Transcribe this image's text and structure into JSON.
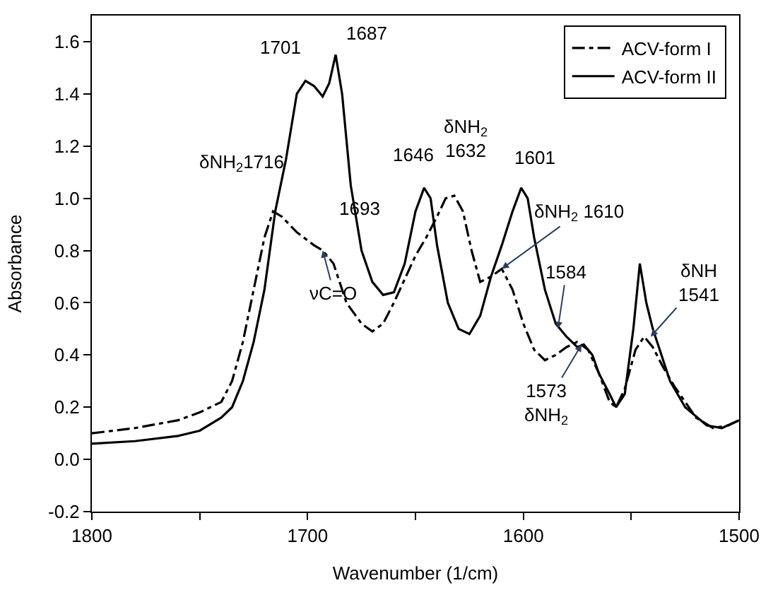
{
  "chart_data": {
    "type": "line",
    "xlabel": "Wavenumber (1/cm)",
    "ylabel": "Absorbance",
    "xlim": [
      1800,
      1500
    ],
    "ylim": [
      -0.2,
      1.7
    ],
    "xticks": [
      1800,
      {
        "value": 1750,
        "label": null
      },
      1700,
      {
        "value": 1650,
        "label": null
      },
      1600,
      {
        "value": 1550,
        "label": null
      },
      1500
    ],
    "yticks": [
      {
        "value": -0.2,
        "label": "-0.2"
      },
      {
        "value": 0,
        "label": "0.0"
      },
      {
        "value": 0.2,
        "label": "0.2"
      },
      {
        "value": 0.4,
        "label": "0.4"
      },
      {
        "value": 0.6,
        "label": "0.6"
      },
      {
        "value": 0.8,
        "label": "0.8"
      },
      {
        "value": 1.0,
        "label": "1.0"
      },
      {
        "value": 1.2,
        "label": "1.2"
      },
      {
        "value": 1.4,
        "label": "1.4"
      },
      {
        "value": 1.6,
        "label": "1.6"
      }
    ],
    "legend": "top right",
    "marker": "none",
    "series": [
      {
        "name": "ACV-form I",
        "color": "#000000",
        "line_style": "dashdot",
        "x": [
          1800,
          1780,
          1760,
          1750,
          1740,
          1735,
          1730,
          1725,
          1720,
          1716,
          1712,
          1705,
          1697,
          1693,
          1688,
          1682,
          1675,
          1670,
          1665,
          1660,
          1650,
          1645,
          1640,
          1636,
          1632,
          1628,
          1624,
          1620,
          1615,
          1610,
          1605,
          1600,
          1595,
          1590,
          1585,
          1580,
          1575,
          1570,
          1565,
          1560,
          1557,
          1553,
          1548,
          1544,
          1540,
          1535,
          1530,
          1520,
          1512,
          1505,
          1500
        ],
        "values": [
          0.1,
          0.12,
          0.15,
          0.18,
          0.22,
          0.3,
          0.45,
          0.65,
          0.85,
          0.95,
          0.93,
          0.87,
          0.82,
          0.8,
          0.75,
          0.6,
          0.52,
          0.49,
          0.52,
          0.6,
          0.78,
          0.85,
          0.93,
          1.0,
          1.01,
          0.95,
          0.8,
          0.68,
          0.7,
          0.73,
          0.65,
          0.52,
          0.42,
          0.38,
          0.4,
          0.43,
          0.45,
          0.42,
          0.33,
          0.22,
          0.2,
          0.27,
          0.42,
          0.47,
          0.43,
          0.35,
          0.28,
          0.16,
          0.12,
          0.13,
          0.15
        ]
      },
      {
        "name": "ACV-form II",
        "color": "#000000",
        "line_style": "solid",
        "x": [
          1800,
          1780,
          1760,
          1750,
          1740,
          1735,
          1730,
          1725,
          1720,
          1715,
          1710,
          1705,
          1701,
          1697,
          1693,
          1690,
          1687,
          1684,
          1680,
          1675,
          1670,
          1665,
          1660,
          1655,
          1650,
          1646,
          1643,
          1640,
          1635,
          1630,
          1625,
          1620,
          1615,
          1610,
          1605,
          1601,
          1598,
          1595,
          1590,
          1585,
          1580,
          1575,
          1572,
          1568,
          1565,
          1560,
          1557,
          1553,
          1549,
          1546,
          1543,
          1540,
          1536,
          1532,
          1525,
          1515,
          1508,
          1500
        ],
        "values": [
          0.06,
          0.07,
          0.09,
          0.11,
          0.16,
          0.2,
          0.3,
          0.45,
          0.65,
          0.95,
          1.15,
          1.4,
          1.45,
          1.43,
          1.39,
          1.44,
          1.55,
          1.4,
          1.05,
          0.8,
          0.68,
          0.63,
          0.64,
          0.75,
          0.95,
          1.04,
          1.0,
          0.82,
          0.6,
          0.5,
          0.48,
          0.55,
          0.7,
          0.82,
          0.95,
          1.04,
          1.0,
          0.85,
          0.65,
          0.52,
          0.47,
          0.43,
          0.44,
          0.4,
          0.33,
          0.25,
          0.2,
          0.25,
          0.5,
          0.75,
          0.6,
          0.5,
          0.4,
          0.3,
          0.2,
          0.13,
          0.12,
          0.15
        ]
      }
    ],
    "annotations": [
      {
        "text": "1701",
        "x": 1701,
        "y": 1.45
      },
      {
        "text": "1687",
        "x": 1687,
        "y": 1.55
      },
      {
        "text": "δNH$_{2}$1716",
        "x": 1716,
        "y": 0.95
      },
      {
        "text": "1693",
        "x": 1693,
        "y": 0.8
      },
      {
        "text": "νC=O",
        "x": 1693,
        "y": 0.8
      },
      {
        "text": "1646",
        "x": 1646,
        "y": 1.04
      },
      {
        "text": "δNH$_{2}$\n1632",
        "x": 1632,
        "y": 1.01
      },
      {
        "text": "1601",
        "x": 1601,
        "y": 1.04
      },
      {
        "text": "δNH$_{2}$ 1610",
        "x": 1610,
        "y": 0.73
      },
      {
        "text": "1584",
        "x": 1584,
        "y": 0.5
      },
      {
        "text": "1573\nδNH$_{2}$",
        "x": 1573,
        "y": 0.44
      },
      {
        "text": "δNH\n1541",
        "x": 1541,
        "y": 0.47
      }
    ]
  }
}
